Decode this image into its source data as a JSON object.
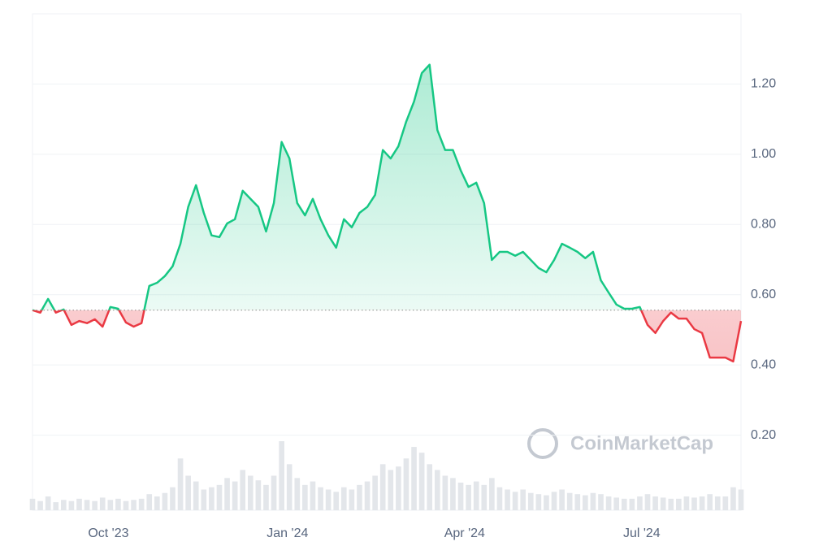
{
  "chart_data": {
    "type": "line",
    "watermark": "CoinMarketCap",
    "x": [
      0,
      4,
      8,
      12,
      16,
      20,
      24,
      28,
      32,
      36,
      40,
      44,
      48,
      52,
      56,
      60,
      64,
      68,
      72,
      76,
      80,
      84,
      88,
      92,
      96,
      100,
      104,
      108,
      112,
      116,
      120,
      124,
      128,
      132,
      136,
      140,
      144,
      148,
      152,
      156,
      160,
      164,
      168,
      172,
      176,
      180,
      184,
      188,
      192,
      196,
      200,
      204,
      208,
      212,
      216,
      220,
      224,
      228,
      232,
      236,
      240,
      244,
      248,
      252,
      256,
      260,
      264,
      268,
      272,
      276,
      280,
      284,
      288,
      292,
      296,
      300,
      304,
      308,
      312,
      316,
      320,
      324,
      328,
      332,
      336,
      340,
      344,
      348,
      352,
      356,
      360,
      364
    ],
    "series": [
      {
        "name": "Price",
        "color": "#16c784",
        "below_color": "#ea3943",
        "values": [
          0.556,
          0.549,
          0.588,
          0.549,
          0.558,
          0.514,
          0.525,
          0.519,
          0.53,
          0.509,
          0.565,
          0.56,
          0.521,
          0.509,
          0.519,
          0.625,
          0.634,
          0.653,
          0.681,
          0.745,
          0.85,
          0.912,
          0.833,
          0.769,
          0.764,
          0.803,
          0.815,
          0.896,
          0.873,
          0.85,
          0.78,
          0.861,
          1.035,
          0.988,
          0.861,
          0.826,
          0.873,
          0.815,
          0.769,
          0.734,
          0.815,
          0.792,
          0.833,
          0.85,
          0.884,
          1.012,
          0.988,
          1.023,
          1.093,
          1.15,
          1.231,
          1.255,
          1.069,
          1.012,
          1.012,
          0.954,
          0.907,
          0.919,
          0.861,
          0.699,
          0.722,
          0.722,
          0.711,
          0.722,
          0.699,
          0.676,
          0.664,
          0.699,
          0.745,
          0.734,
          0.722,
          0.704,
          0.722,
          0.641,
          0.606,
          0.572,
          0.56,
          0.56,
          0.565,
          0.514,
          0.491,
          0.525,
          0.549,
          0.532,
          0.532,
          0.502,
          0.491,
          0.421,
          0.421,
          0.421,
          0.41,
          0.525
        ]
      },
      {
        "name": "Volume",
        "color": "#e3e6ea",
        "values": [
          10,
          8,
          12,
          7,
          9,
          8,
          10,
          9,
          8,
          11,
          9,
          10,
          8,
          9,
          10,
          14,
          12,
          15,
          20,
          45,
          30,
          25,
          18,
          20,
          22,
          28,
          25,
          35,
          30,
          26,
          22,
          30,
          60,
          40,
          28,
          22,
          25,
          20,
          18,
          16,
          20,
          18,
          22,
          25,
          30,
          40,
          35,
          38,
          45,
          55,
          50,
          40,
          35,
          30,
          28,
          24,
          22,
          25,
          22,
          28,
          20,
          18,
          16,
          18,
          15,
          14,
          13,
          16,
          18,
          15,
          14,
          13,
          15,
          14,
          12,
          11,
          10,
          10,
          12,
          14,
          12,
          11,
          10,
          10,
          12,
          11,
          12,
          14,
          12,
          12,
          20,
          18
        ]
      }
    ],
    "baseline": 0.556,
    "xlim": [
      0,
      364
    ],
    "xticks": [
      {
        "value": 39,
        "label": "Oct '23"
      },
      {
        "value": 131,
        "label": "Jan '24"
      },
      {
        "value": 222,
        "label": "Apr '24"
      },
      {
        "value": 313,
        "label": "Jul '24"
      }
    ],
    "ylim": [
      0,
      1.4
    ],
    "yticks": [
      {
        "value": 0.2,
        "label": "0.20"
      },
      {
        "value": 0.4,
        "label": "0.40"
      },
      {
        "value": 0.6,
        "label": "0.60"
      },
      {
        "value": 0.8,
        "label": "0.80"
      },
      {
        "value": 1.0,
        "label": "1.00"
      },
      {
        "value": 1.2,
        "label": "1.20"
      }
    ],
    "grid": true
  }
}
